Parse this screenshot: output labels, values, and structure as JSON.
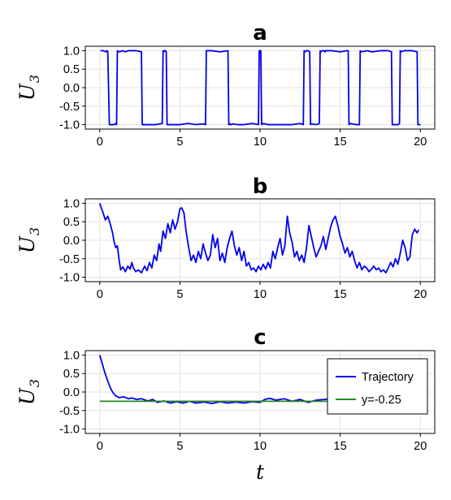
{
  "chart_data": [
    {
      "type": "line",
      "title": "a",
      "xlabel": "",
      "ylabel": "U",
      "ylabel_subscript": "3",
      "xlim": [
        -0.9,
        20.9
      ],
      "ylim": [
        -1.12,
        1.12
      ],
      "xticks": [
        0,
        5,
        10,
        15,
        20
      ],
      "xtick_labels": [
        "0",
        "5",
        "10",
        "15",
        "20"
      ],
      "yticks": [
        1.0,
        0.5,
        0.0,
        -0.5,
        -1.0
      ],
      "ytick_labels": [
        "1.0",
        "0.5",
        "0.0",
        "-0.5",
        "-1.0"
      ],
      "grid": true,
      "series": [
        {
          "color": "#0000ee",
          "x": [
            0.05,
            0.2,
            0.4,
            0.45,
            0.5,
            0.6,
            0.9,
            1.0,
            1.05,
            1.1,
            1.2,
            1.3,
            1.4,
            1.6,
            1.8,
            2.0,
            2.3,
            2.6,
            2.65,
            3.0,
            3.5,
            3.9,
            3.95,
            4.0,
            4.05,
            4.1,
            4.15,
            4.2,
            4.4,
            5.0,
            5.5,
            6.0,
            6.5,
            6.6,
            6.65,
            7.0,
            7.5,
            8.0,
            8.05,
            8.1,
            8.15,
            8.2,
            8.3,
            8.6,
            9.0,
            9.5,
            9.9,
            9.95,
            10.0,
            10.05,
            10.1,
            10.2,
            10.5,
            11.0,
            11.5,
            12.0,
            12.5,
            12.7,
            12.75,
            12.8,
            12.9,
            13.0,
            13.1,
            13.15,
            13.2,
            13.5,
            13.7,
            13.75,
            13.8,
            13.9,
            14.0,
            14.05,
            14.1,
            14.5,
            15.0,
            15.4,
            15.5,
            15.55,
            15.6,
            16.0,
            16.2,
            16.25,
            16.3,
            16.7,
            17.0,
            17.5,
            18.0,
            18.2,
            18.25,
            18.3,
            18.6,
            18.7,
            18.75,
            18.8,
            19.0,
            19.5,
            19.8,
            19.85,
            19.9,
            20.0
          ],
          "y": [
            1.0,
            1.0,
            0.97,
            1.0,
            0.98,
            -1.0,
            -1.0,
            -0.97,
            -1.0,
            1.0,
            0.97,
            0.98,
            1.0,
            0.97,
            1.0,
            1.0,
            1.0,
            0.97,
            -1.0,
            -1.0,
            -1.0,
            -0.97,
            1.0,
            0.97,
            1.0,
            1.0,
            0.97,
            -1.0,
            -1.0,
            -1.0,
            -0.97,
            -1.0,
            -0.98,
            -1.0,
            1.0,
            1.0,
            0.97,
            1.0,
            -1.0,
            -0.97,
            -1.0,
            -1.0,
            -0.98,
            -1.0,
            -1.0,
            -0.97,
            -1.0,
            1.0,
            0.97,
            1.0,
            -1.0,
            -0.97,
            -1.0,
            -1.0,
            -1.0,
            -1.0,
            -0.97,
            -1.0,
            1.0,
            0.97,
            1.0,
            1.0,
            0.97,
            -1.0,
            -0.98,
            -1.0,
            -0.97,
            1.0,
            0.97,
            1.0,
            1.0,
            0.97,
            1.0,
            1.0,
            0.97,
            1.0,
            1.0,
            -1.0,
            -0.97,
            -1.0,
            -1.0,
            1.0,
            0.97,
            1.0,
            0.97,
            1.0,
            1.0,
            0.97,
            -1.0,
            -1.0,
            -1.0,
            -0.97,
            1.0,
            0.97,
            1.0,
            1.0,
            0.97,
            -1.0,
            -1.0,
            -1.0
          ]
        }
      ]
    },
    {
      "type": "line",
      "title": "b",
      "xlabel": "",
      "ylabel": "U",
      "ylabel_subscript": "3",
      "xlim": [
        -0.9,
        20.9
      ],
      "ylim": [
        -1.12,
        1.12
      ],
      "xticks": [
        0,
        5,
        10,
        15,
        20
      ],
      "xtick_labels": [
        "0",
        "5",
        "10",
        "15",
        "20"
      ],
      "yticks": [
        1.0,
        0.5,
        0.0,
        -0.5,
        -1.0
      ],
      "ytick_labels": [
        "1.0",
        "0.5",
        "0.0",
        "-0.5",
        "-1.0"
      ],
      "grid": true,
      "series": [
        {
          "color": "#0000ee",
          "x": [
            0.0,
            0.2,
            0.35,
            0.5,
            0.65,
            0.8,
            0.9,
            1.0,
            1.1,
            1.2,
            1.3,
            1.45,
            1.6,
            1.75,
            1.9,
            2.0,
            2.1,
            2.25,
            2.4,
            2.6,
            2.8,
            2.95,
            3.1,
            3.25,
            3.4,
            3.55,
            3.7,
            3.8,
            3.95,
            4.1,
            4.25,
            4.4,
            4.55,
            4.7,
            4.85,
            5.0,
            5.1,
            5.25,
            5.4,
            5.55,
            5.7,
            5.85,
            6.0,
            6.15,
            6.3,
            6.45,
            6.6,
            6.75,
            6.9,
            7.05,
            7.2,
            7.35,
            7.5,
            7.65,
            7.8,
            7.95,
            8.1,
            8.25,
            8.4,
            8.55,
            8.7,
            8.85,
            9.0,
            9.15,
            9.3,
            9.45,
            9.6,
            9.75,
            9.9,
            10.05,
            10.2,
            10.35,
            10.5,
            10.65,
            10.8,
            10.95,
            11.1,
            11.25,
            11.4,
            11.55,
            11.7,
            11.85,
            12.0,
            12.15,
            12.3,
            12.45,
            12.6,
            12.75,
            12.9,
            13.05,
            13.2,
            13.35,
            13.5,
            13.65,
            13.8,
            13.95,
            14.1,
            14.25,
            14.4,
            14.55,
            14.7,
            14.85,
            15.0,
            15.15,
            15.3,
            15.45,
            15.6,
            15.75,
            15.9,
            16.05,
            16.2,
            16.35,
            16.5,
            16.65,
            16.8,
            16.95,
            17.1,
            17.25,
            17.4,
            17.55,
            17.7,
            17.85,
            18.0,
            18.15,
            18.3,
            18.45,
            18.6,
            18.75,
            18.9,
            19.05,
            19.2,
            19.35,
            19.5,
            19.65,
            19.8,
            19.9
          ],
          "y": [
            1.0,
            0.75,
            0.55,
            0.65,
            0.45,
            0.2,
            -0.05,
            -0.2,
            -0.15,
            -0.5,
            -0.8,
            -0.72,
            -0.85,
            -0.7,
            -0.78,
            -0.6,
            -0.75,
            -0.85,
            -0.8,
            -0.88,
            -0.7,
            -0.82,
            -0.6,
            -0.75,
            -0.4,
            -0.55,
            -0.1,
            -0.3,
            0.25,
            0.05,
            0.45,
            0.2,
            0.55,
            0.3,
            0.5,
            0.85,
            0.88,
            0.75,
            0.2,
            -0.2,
            -0.55,
            -0.4,
            -0.6,
            -0.3,
            -0.5,
            -0.1,
            -0.35,
            -0.55,
            -0.4,
            0.15,
            -0.2,
            0.05,
            -0.55,
            -0.35,
            -0.6,
            -0.2,
            0.05,
            0.25,
            -0.15,
            -0.4,
            -0.2,
            -0.55,
            -0.3,
            -0.7,
            -0.6,
            -0.8,
            -0.75,
            -0.85,
            -0.7,
            -0.8,
            -0.65,
            -0.78,
            -0.6,
            -0.75,
            -0.3,
            -0.5,
            -0.2,
            0.05,
            -0.4,
            -0.15,
            0.65,
            0.2,
            -0.05,
            -0.45,
            -0.3,
            -0.55,
            -0.4,
            -0.6,
            -0.2,
            0.4,
            0.1,
            -0.2,
            -0.45,
            -0.3,
            -0.15,
            0.1,
            -0.25,
            0.05,
            0.35,
            0.55,
            0.65,
            0.4,
            0.1,
            -0.1,
            -0.35,
            -0.2,
            -0.45,
            -0.3,
            -0.55,
            -0.75,
            -0.6,
            -0.8,
            -0.7,
            -0.75,
            -0.85,
            -0.78,
            -0.7,
            -0.8,
            -0.75,
            -0.85,
            -0.8,
            -0.88,
            -0.75,
            -0.6,
            -0.72,
            -0.5,
            -0.65,
            -0.35,
            0.0,
            -0.2,
            -0.55,
            -0.45,
            0.15,
            0.3,
            0.2,
            0.28
          ]
        }
      ]
    },
    {
      "type": "line",
      "title": "c",
      "xlabel": "t",
      "ylabel": "U",
      "ylabel_subscript": "3",
      "xlim": [
        -0.9,
        20.9
      ],
      "ylim": [
        -1.12,
        1.12
      ],
      "xticks": [
        0,
        5,
        10,
        15,
        20
      ],
      "xtick_labels": [
        "0",
        "5",
        "10",
        "15",
        "20"
      ],
      "yticks": [
        1.0,
        0.5,
        0.0,
        -0.5,
        -1.0
      ],
      "ytick_labels": [
        "1.0",
        "0.5",
        "0.0",
        "-0.5",
        "-1.0"
      ],
      "grid": true,
      "legend_position": "top-right",
      "series": [
        {
          "name": "Trajectory",
          "color": "#0000ee",
          "x": [
            0.0,
            0.1,
            0.2,
            0.3,
            0.4,
            0.5,
            0.6,
            0.7,
            0.8,
            0.9,
            1.0,
            1.2,
            1.5,
            1.8,
            2.0,
            2.3,
            2.6,
            3.0,
            3.3,
            3.6,
            4.0,
            4.4,
            4.8,
            5.2,
            5.6,
            6.0,
            6.5,
            7.0,
            7.5,
            8.0,
            8.5,
            9.0,
            9.5,
            10.0,
            10.3,
            10.6,
            11.0,
            11.5,
            12.0,
            12.5,
            13.0,
            13.5,
            14.0,
            14.5
          ],
          "y": [
            1.0,
            0.85,
            0.7,
            0.55,
            0.42,
            0.3,
            0.18,
            0.08,
            0.0,
            -0.06,
            -0.1,
            -0.15,
            -0.13,
            -0.18,
            -0.16,
            -0.2,
            -0.18,
            -0.24,
            -0.2,
            -0.28,
            -0.24,
            -0.3,
            -0.26,
            -0.3,
            -0.25,
            -0.3,
            -0.27,
            -0.31,
            -0.26,
            -0.3,
            -0.27,
            -0.3,
            -0.26,
            -0.28,
            -0.2,
            -0.17,
            -0.22,
            -0.18,
            -0.25,
            -0.2,
            -0.28,
            -0.22,
            -0.2,
            -0.18
          ]
        },
        {
          "name": "y=-0.25",
          "color": "#228b22",
          "x": [
            0,
            20
          ],
          "y": [
            -0.25,
            -0.25
          ]
        }
      ]
    }
  ]
}
